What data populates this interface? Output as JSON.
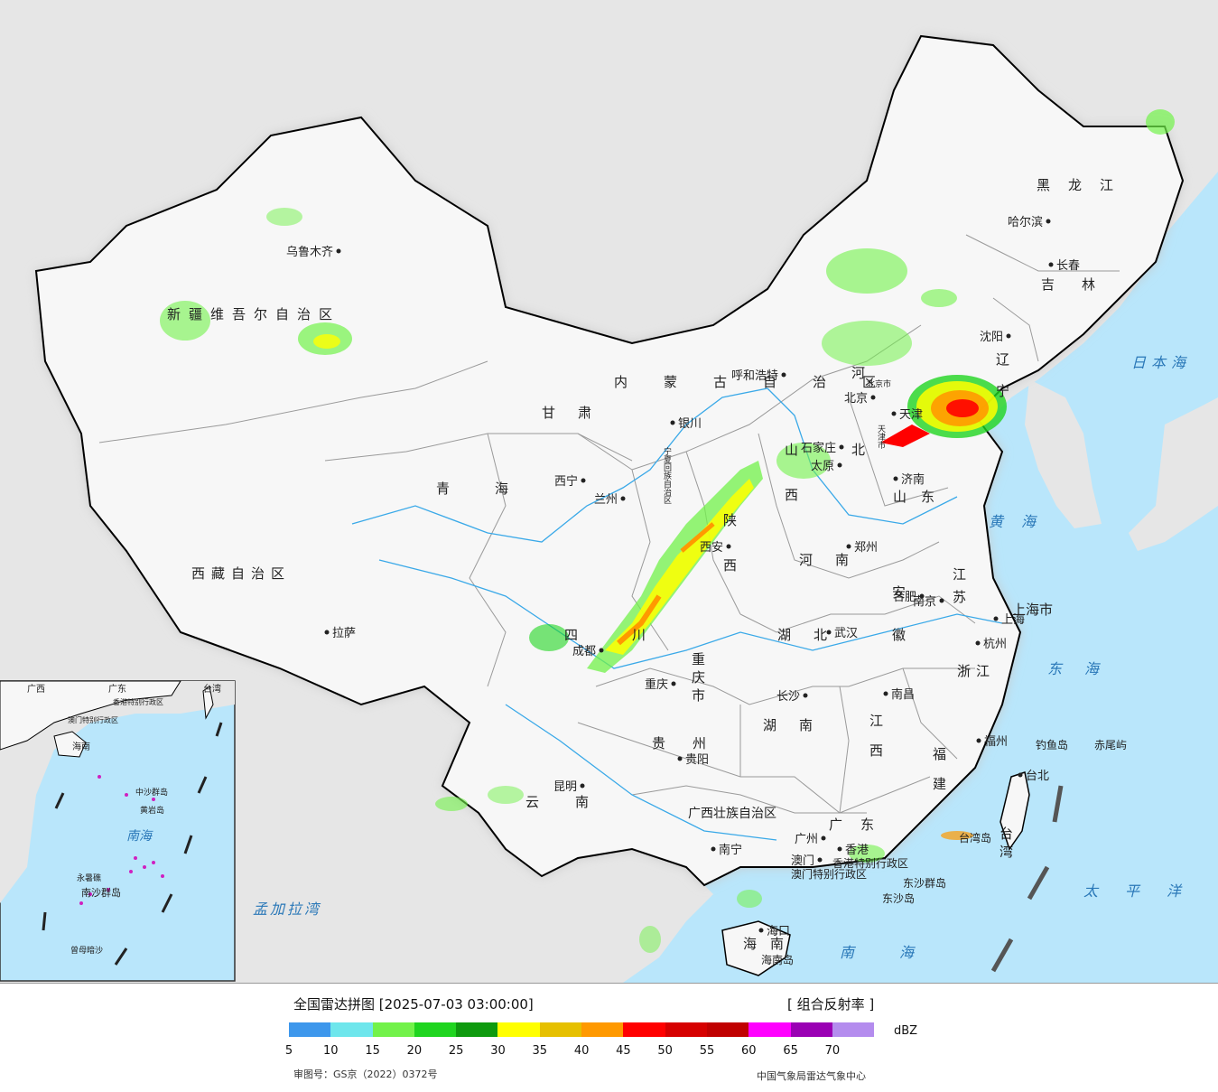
{
  "legend": {
    "title": "全国雷达拼图 [2025-07-03 03:00:00]",
    "product": "[ 组合反射率 ]",
    "unit": "dBZ",
    "ticks": [
      "5",
      "10",
      "15",
      "20",
      "25",
      "30",
      "35",
      "40",
      "45",
      "50",
      "55",
      "60",
      "65",
      "70"
    ],
    "colors": [
      "#3d97ec",
      "#6ee6ec",
      "#72f24a",
      "#1fd51f",
      "#0e9a0e",
      "#ffff00",
      "#e6c000",
      "#ff9900",
      "#ff0000",
      "#d60000",
      "#c00000",
      "#ff00ff",
      "#9a00b4",
      "#b48cee"
    ],
    "approval": "审图号：GS京（2022）0372号",
    "producer": "中国气象局雷达气象中心"
  },
  "colors": {
    "ocean": "#b9e6fb",
    "land": "#f7f7f7",
    "foreign_land": "#e6e6e6",
    "border": "#000000",
    "province_border": "#9a9a9a"
  },
  "cities": [
    "乌鲁木齐",
    "呼和浩特",
    "银川",
    "西宁",
    "兰州",
    "拉萨",
    "西安",
    "太原",
    "石家庄",
    "北京",
    "天津",
    "济南",
    "郑州",
    "合肥",
    "南京",
    "上海",
    "杭州",
    "武汉",
    "重庆",
    "成都",
    "贵阳",
    "昆明",
    "长沙",
    "南昌",
    "福州",
    "台北",
    "广州",
    "澳门",
    "香港",
    "南宁",
    "海口",
    "沈阳",
    "长春",
    "哈尔滨"
  ],
  "regions": [
    "新疆维吾尔自治区",
    "西藏自治区",
    "青海",
    "甘肃",
    "内蒙古自治区",
    "宁夏回族自治区",
    "陕西",
    "山西",
    "河北",
    "山东",
    "河南",
    "湖北",
    "湖南",
    "江苏",
    "安徽",
    "浙江",
    "江西",
    "福建",
    "台湾",
    "广东",
    "广西壮族自治区",
    "云南",
    "贵州",
    "四川",
    "重庆市",
    "北京市",
    "天津市",
    "上海市",
    "辽宁",
    "吉林",
    "黑龙江",
    "海南",
    "香港特别行政区",
    "澳门特别行政区"
  ],
  "seas": [
    "日本海",
    "黄海",
    "东海",
    "太平洋",
    "南海",
    "孟加拉湾"
  ],
  "islands": [
    "钓鱼岛",
    "赤尾屿",
    "台湾岛",
    "东沙群岛",
    "东沙岛",
    "海南岛"
  ],
  "inset": {
    "labels": [
      "广西",
      "广东",
      "台湾",
      "海南",
      "香港特别行政区",
      "澳门特别行政区",
      "南海",
      "中沙群岛",
      "黄岩岛",
      "永暑礁",
      "南沙群岛",
      "曾母暗沙"
    ]
  }
}
